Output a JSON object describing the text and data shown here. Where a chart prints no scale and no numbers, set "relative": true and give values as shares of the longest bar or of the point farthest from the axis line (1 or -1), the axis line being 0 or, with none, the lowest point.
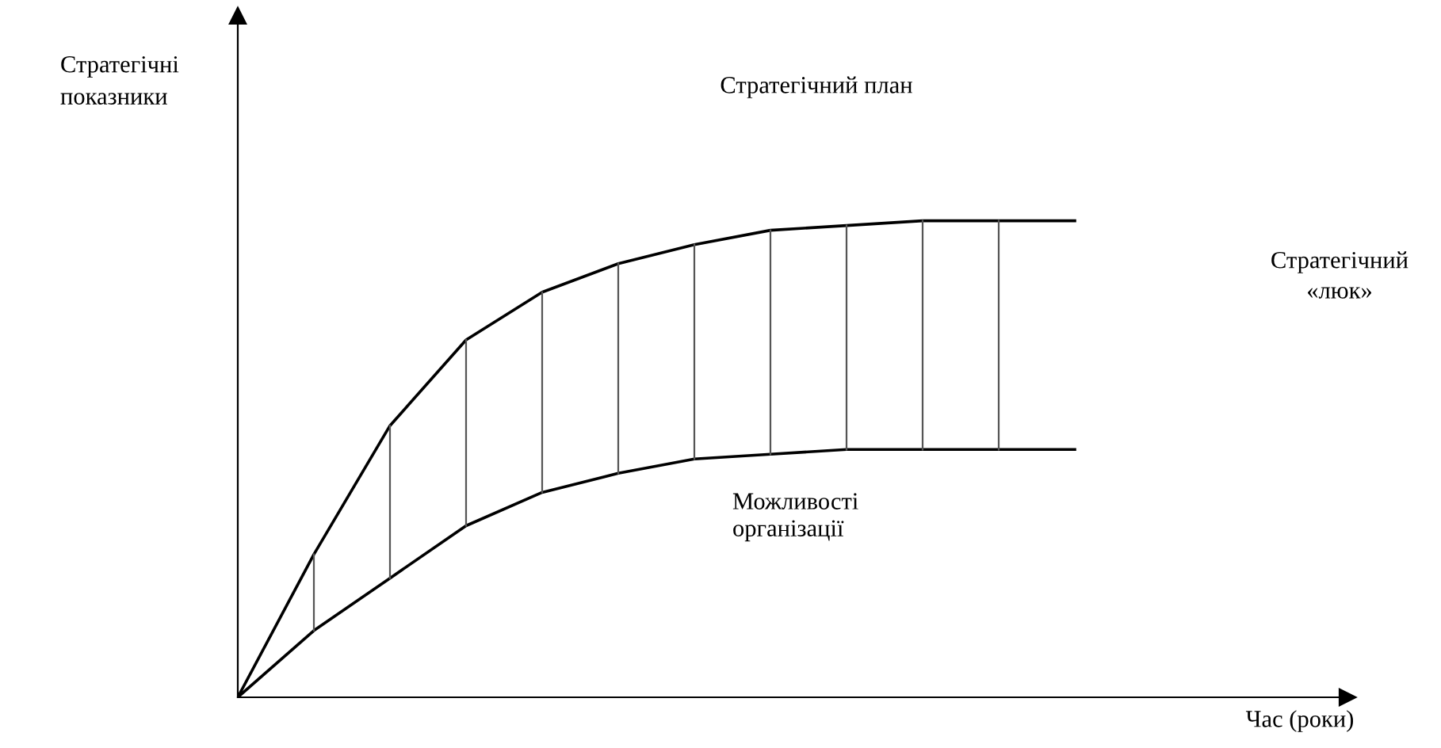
{
  "chart_data": {
    "type": "line",
    "relative": true,
    "ylabel": "Стратегічні\nпоказники",
    "legend": false,
    "marker": "none",
    "line_style": "solid",
    "categories": [
      null,
      null,
      null,
      null,
      null,
      null,
      null,
      null,
      null,
      null,
      null,
      null
    ],
    "series": [
      {
        "color": "#000000",
        "values": [
          0,
          0.3,
          0.57,
          0.75,
          0.85,
          0.91,
          0.95,
          0.98,
          0.99,
          1.0,
          1.0,
          1.0
        ]
      },
      {
        "name": "Можливості\nорганізації",
        "color": "#000000",
        "values": [
          0,
          0.14,
          0.25,
          0.36,
          0.43,
          0.47,
          0.5,
          0.51,
          0.52,
          0.52,
          0.52,
          0.52
        ]
      }
    ],
    "annotations": [
      "Стратегічний план",
      "Стратегічний\n«люк»",
      "Час (роки)"
    ]
  }
}
